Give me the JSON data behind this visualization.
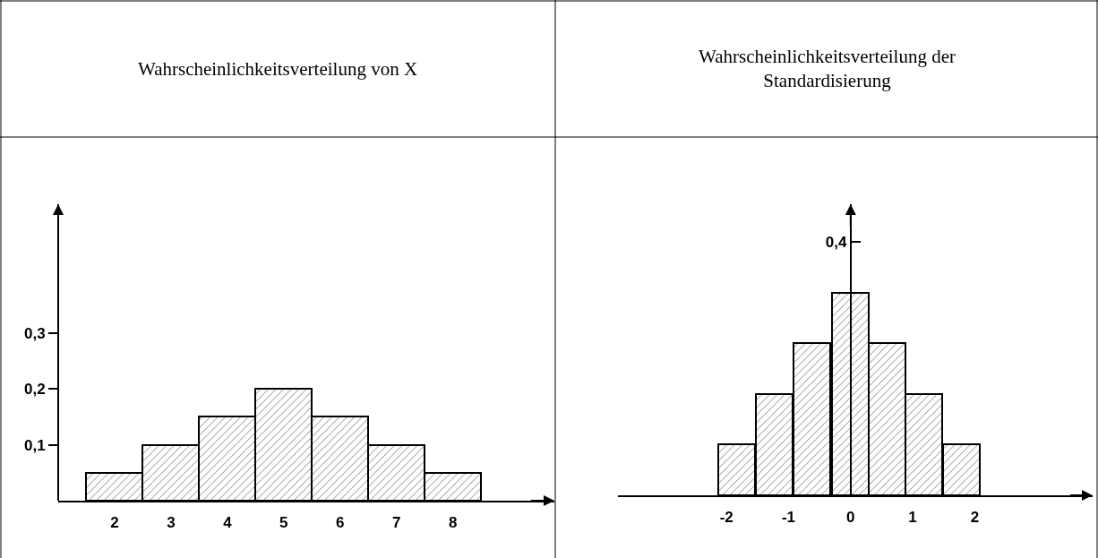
{
  "chart_data": [
    {
      "type": "histogram",
      "title": "Wahrscheinlichkeitsverteilung von X",
      "bins": [
        1.5,
        2.5,
        3.5,
        4.5,
        5.5,
        6.5,
        7.5,
        8.5
      ],
      "values": [
        0.05,
        0.1,
        0.15,
        0.2,
        0.15,
        0.1,
        0.05
      ],
      "xlim": [
        1.0,
        9.8
      ],
      "ylim": [
        0,
        0.53
      ],
      "xticks": [
        2,
        3,
        4,
        5,
        6,
        7,
        8
      ],
      "yticks": [
        {
          "value": 0.1,
          "label": "0,1"
        },
        {
          "value": 0.2,
          "label": "0,2"
        },
        {
          "value": 0.3,
          "label": "0,3"
        }
      ]
    },
    {
      "type": "bar",
      "title": "Wahrscheinlichkeitsverteilung der Standardisierung",
      "x": [
        -1.84,
        -1.23,
        -0.62,
        -0.01,
        0.59,
        1.18,
        1.79
      ],
      "values": [
        0.08,
        0.16,
        0.24,
        0.32,
        0.24,
        0.16,
        0.08
      ],
      "xlim": [
        -3.75,
        3.9
      ],
      "ylim": [
        0,
        0.46
      ],
      "xticks": [
        -2,
        -1,
        0,
        1,
        2
      ],
      "yticks": [
        {
          "value": 0.4,
          "label": "0,4"
        }
      ]
    }
  ]
}
